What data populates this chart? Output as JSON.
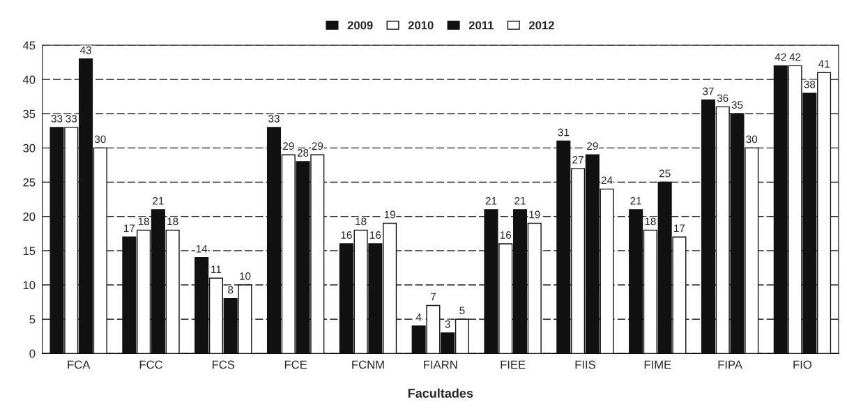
{
  "chart_data": {
    "type": "bar",
    "xlabel": "Facultades",
    "categories": [
      "FCA",
      "FCC",
      "FCS",
      "FCE",
      "FCNM",
      "FIARN",
      "FIEE",
      "FIIS",
      "FIME",
      "FIPA",
      "FIO"
    ],
    "series": [
      {
        "name": "2009",
        "color": "#111111",
        "values": [
          33,
          17,
          14,
          33,
          16,
          4,
          21,
          31,
          21,
          37,
          42
        ]
      },
      {
        "name": "2010",
        "color": "#ffffff",
        "values": [
          33,
          18,
          11,
          29,
          18,
          7,
          16,
          27,
          18,
          36,
          42
        ]
      },
      {
        "name": "2011",
        "color": "#111111",
        "values": [
          43,
          21,
          8,
          28,
          16,
          3,
          21,
          29,
          25,
          35,
          38
        ]
      },
      {
        "name": "2012",
        "color": "#ffffff",
        "values": [
          30,
          18,
          10,
          29,
          19,
          5,
          19,
          24,
          17,
          30,
          41
        ]
      }
    ],
    "ylim": [
      0,
      45
    ],
    "yticks": [
      0,
      5,
      10,
      15,
      20,
      25,
      30,
      35,
      40,
      45
    ],
    "grid": "y",
    "legend": "top",
    "data_labels": true
  }
}
